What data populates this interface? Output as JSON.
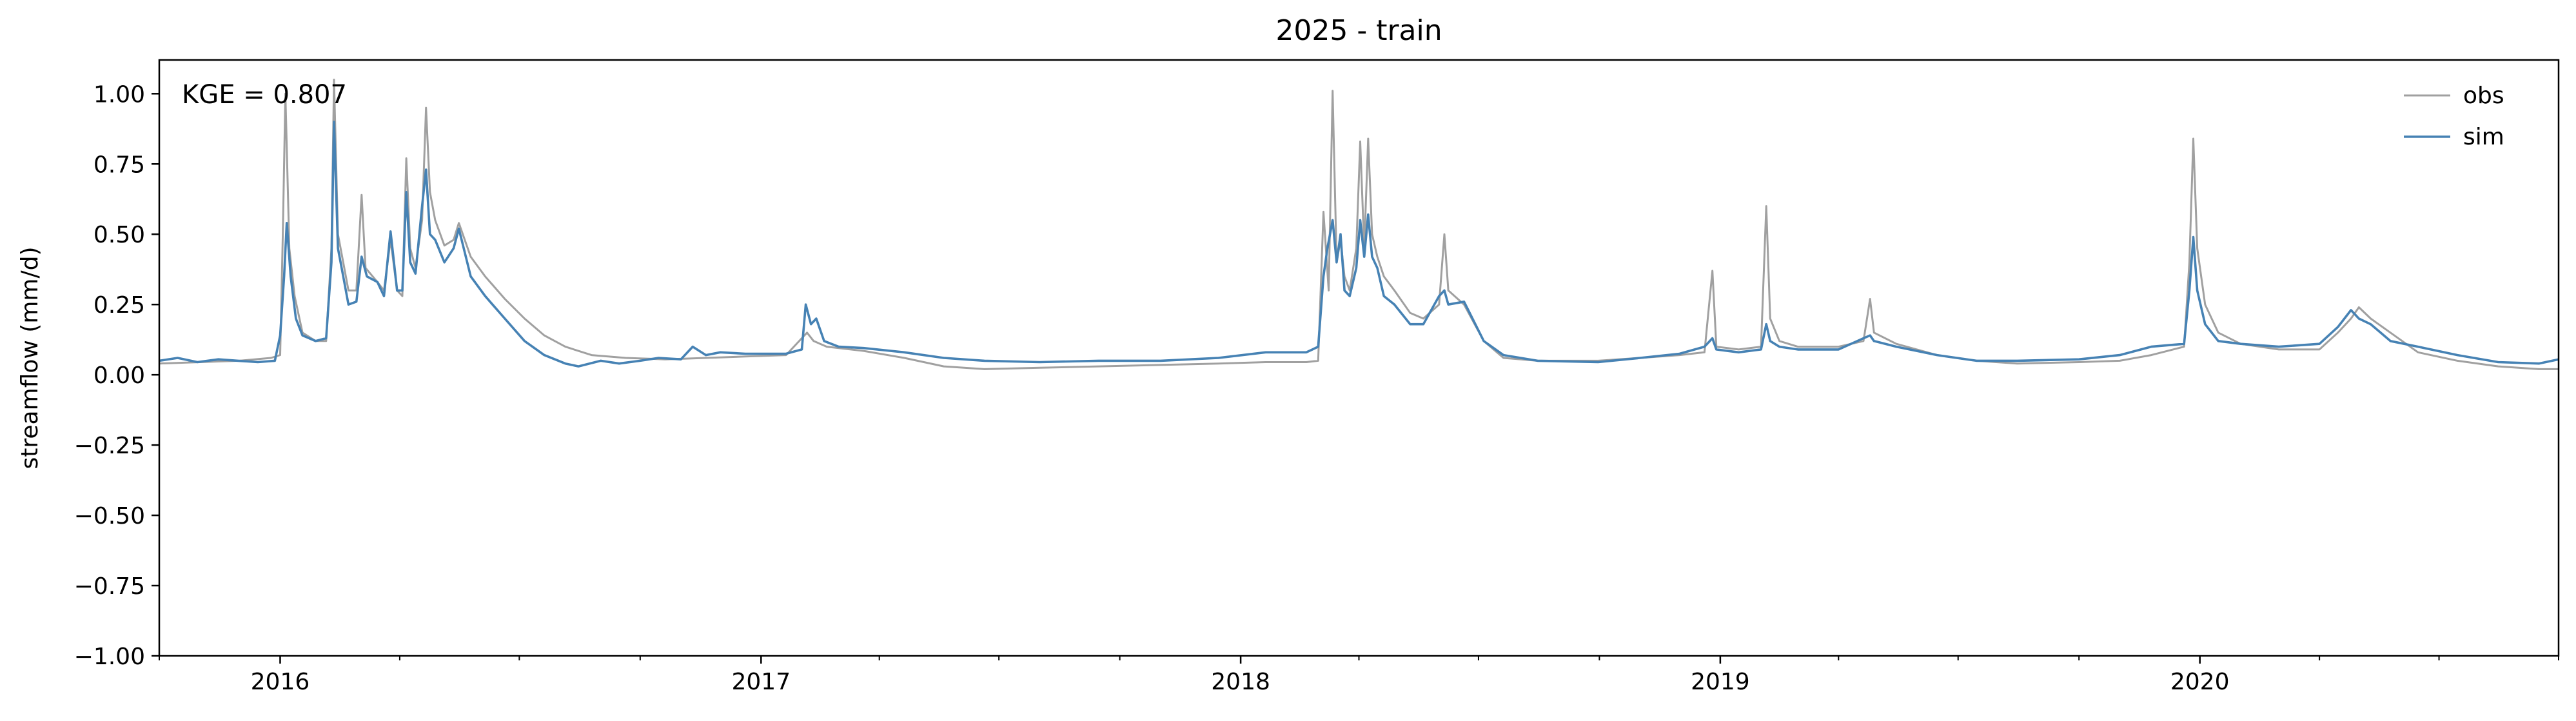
{
  "chart_data": {
    "type": "line",
    "title": "2025 - train",
    "xlabel": "",
    "ylabel": "streamflow (mm/d)",
    "ylim": [
      -1.0,
      1.12
    ],
    "xlim": [
      "2015-10-01",
      "2020-09-30"
    ],
    "grid": false,
    "legend_position": "top-right",
    "annotation": "KGE = 0.807",
    "yticks": [
      -1.0,
      -0.75,
      -0.5,
      -0.25,
      0.0,
      0.25,
      0.5,
      0.75,
      1.0
    ],
    "ytick_labels": [
      "−1.00",
      "−0.75",
      "−0.50",
      "−0.25",
      "0.00",
      "0.25",
      "0.50",
      "0.75",
      "1.00"
    ],
    "xticks": [
      "2016-01-01",
      "2017-01-01",
      "2018-01-01",
      "2019-01-01",
      "2020-01-01"
    ],
    "xtick_labels": [
      "2016",
      "2017",
      "2018",
      "2019",
      "2020"
    ],
    "minor_xticks": [
      "2015-10-01",
      "2016-04-01",
      "2016-07-01",
      "2016-10-01",
      "2017-04-01",
      "2017-07-01",
      "2017-10-01",
      "2018-04-01",
      "2018-07-01",
      "2018-10-01",
      "2019-04-01",
      "2019-07-01",
      "2019-10-01",
      "2020-04-01",
      "2020-07-01",
      "2020-10-01"
    ],
    "series": [
      {
        "name": "obs",
        "color": "#a0a0a0",
        "points": [
          [
            "2015-10-01",
            0.04
          ],
          [
            "2015-11-01",
            0.045
          ],
          [
            "2015-12-01",
            0.05
          ],
          [
            "2015-12-25",
            0.06
          ],
          [
            "2016-01-01",
            0.07
          ],
          [
            "2016-01-03",
            0.5
          ],
          [
            "2016-01-05",
            1.0
          ],
          [
            "2016-01-08",
            0.45
          ],
          [
            "2016-01-12",
            0.28
          ],
          [
            "2016-01-18",
            0.15
          ],
          [
            "2016-01-28",
            0.12
          ],
          [
            "2016-02-05",
            0.12
          ],
          [
            "2016-02-09",
            0.45
          ],
          [
            "2016-02-11",
            1.05
          ],
          [
            "2016-02-14",
            0.5
          ],
          [
            "2016-02-18",
            0.4
          ],
          [
            "2016-02-22",
            0.3
          ],
          [
            "2016-02-28",
            0.3
          ],
          [
            "2016-03-03",
            0.64
          ],
          [
            "2016-03-06",
            0.38
          ],
          [
            "2016-03-15",
            0.33
          ],
          [
            "2016-03-20",
            0.3
          ],
          [
            "2016-03-25",
            0.48
          ],
          [
            "2016-03-30",
            0.3
          ],
          [
            "2016-04-03",
            0.28
          ],
          [
            "2016-04-06",
            0.77
          ],
          [
            "2016-04-09",
            0.45
          ],
          [
            "2016-04-13",
            0.38
          ],
          [
            "2016-04-18",
            0.55
          ],
          [
            "2016-04-21",
            0.95
          ],
          [
            "2016-04-24",
            0.65
          ],
          [
            "2016-04-28",
            0.55
          ],
          [
            "2016-05-05",
            0.46
          ],
          [
            "2016-05-12",
            0.48
          ],
          [
            "2016-05-16",
            0.54
          ],
          [
            "2016-05-25",
            0.42
          ],
          [
            "2016-06-05",
            0.35
          ],
          [
            "2016-06-20",
            0.27
          ],
          [
            "2016-07-05",
            0.2
          ],
          [
            "2016-07-20",
            0.14
          ],
          [
            "2016-08-05",
            0.1
          ],
          [
            "2016-08-25",
            0.07
          ],
          [
            "2016-09-20",
            0.06
          ],
          [
            "2016-10-20",
            0.055
          ],
          [
            "2016-11-20",
            0.06
          ],
          [
            "2016-12-20",
            0.065
          ],
          [
            "2017-01-20",
            0.07
          ],
          [
            "2017-02-05",
            0.15
          ],
          [
            "2017-02-10",
            0.12
          ],
          [
            "2017-02-20",
            0.1
          ],
          [
            "2017-03-20",
            0.085
          ],
          [
            "2017-04-20",
            0.06
          ],
          [
            "2017-05-20",
            0.03
          ],
          [
            "2017-06-20",
            0.02
          ],
          [
            "2017-08-01",
            0.025
          ],
          [
            "2017-09-15",
            0.03
          ],
          [
            "2017-11-01",
            0.035
          ],
          [
            "2017-12-15",
            0.04
          ],
          [
            "2018-01-20",
            0.045
          ],
          [
            "2018-02-20",
            0.045
          ],
          [
            "2018-03-01",
            0.05
          ],
          [
            "2018-03-05",
            0.58
          ],
          [
            "2018-03-09",
            0.3
          ],
          [
            "2018-03-12",
            1.01
          ],
          [
            "2018-03-15",
            0.4
          ],
          [
            "2018-03-18",
            0.48
          ],
          [
            "2018-03-21",
            0.35
          ],
          [
            "2018-03-25",
            0.3
          ],
          [
            "2018-03-30",
            0.45
          ],
          [
            "2018-04-02",
            0.83
          ],
          [
            "2018-04-05",
            0.45
          ],
          [
            "2018-04-08",
            0.84
          ],
          [
            "2018-04-11",
            0.5
          ],
          [
            "2018-04-15",
            0.42
          ],
          [
            "2018-04-20",
            0.35
          ],
          [
            "2018-04-28",
            0.3
          ],
          [
            "2018-05-10",
            0.22
          ],
          [
            "2018-05-20",
            0.2
          ],
          [
            "2018-06-01",
            0.25
          ],
          [
            "2018-06-05",
            0.5
          ],
          [
            "2018-06-08",
            0.3
          ],
          [
            "2018-06-20",
            0.25
          ],
          [
            "2018-07-05",
            0.12
          ],
          [
            "2018-07-20",
            0.06
          ],
          [
            "2018-08-15",
            0.05
          ],
          [
            "2018-09-30",
            0.05
          ],
          [
            "2018-11-01",
            0.06
          ],
          [
            "2018-12-01",
            0.07
          ],
          [
            "2018-12-20",
            0.08
          ],
          [
            "2018-12-26",
            0.37
          ],
          [
            "2018-12-29",
            0.1
          ],
          [
            "2019-01-15",
            0.09
          ],
          [
            "2019-02-01",
            0.1
          ],
          [
            "2019-02-05",
            0.6
          ],
          [
            "2019-02-08",
            0.2
          ],
          [
            "2019-02-15",
            0.12
          ],
          [
            "2019-03-01",
            0.1
          ],
          [
            "2019-04-01",
            0.1
          ],
          [
            "2019-04-20",
            0.12
          ],
          [
            "2019-04-25",
            0.27
          ],
          [
            "2019-04-28",
            0.15
          ],
          [
            "2019-05-15",
            0.11
          ],
          [
            "2019-06-15",
            0.07
          ],
          [
            "2019-07-15",
            0.05
          ],
          [
            "2019-08-15",
            0.04
          ],
          [
            "2019-10-01",
            0.045
          ],
          [
            "2019-11-01",
            0.05
          ],
          [
            "2019-11-25",
            0.07
          ],
          [
            "2019-12-20",
            0.1
          ],
          [
            "2019-12-24",
            0.4
          ],
          [
            "2019-12-27",
            0.84
          ],
          [
            "2019-12-30",
            0.45
          ],
          [
            "2020-01-05",
            0.25
          ],
          [
            "2020-01-15",
            0.15
          ],
          [
            "2020-02-01",
            0.11
          ],
          [
            "2020-03-01",
            0.09
          ],
          [
            "2020-04-01",
            0.09
          ],
          [
            "2020-04-15",
            0.15
          ],
          [
            "2020-04-25",
            0.2
          ],
          [
            "2020-05-01",
            0.24
          ],
          [
            "2020-05-10",
            0.2
          ],
          [
            "2020-05-25",
            0.15
          ],
          [
            "2020-06-15",
            0.08
          ],
          [
            "2020-07-15",
            0.05
          ],
          [
            "2020-08-15",
            0.03
          ],
          [
            "2020-09-15",
            0.02
          ],
          [
            "2020-09-30",
            0.02
          ]
        ]
      },
      {
        "name": "sim",
        "color": "#4682b4",
        "points": [
          [
            "2015-10-01",
            0.05
          ],
          [
            "2015-10-15",
            0.06
          ],
          [
            "2015-10-30",
            0.045
          ],
          [
            "2015-11-15",
            0.055
          ],
          [
            "2015-11-30",
            0.05
          ],
          [
            "2015-12-15",
            0.045
          ],
          [
            "2015-12-28",
            0.05
          ],
          [
            "2016-01-01",
            0.14
          ],
          [
            "2016-01-04",
            0.35
          ],
          [
            "2016-01-06",
            0.54
          ],
          [
            "2016-01-09",
            0.35
          ],
          [
            "2016-01-13",
            0.2
          ],
          [
            "2016-01-18",
            0.14
          ],
          [
            "2016-01-28",
            0.12
          ],
          [
            "2016-02-05",
            0.13
          ],
          [
            "2016-02-09",
            0.4
          ],
          [
            "2016-02-11",
            0.9
          ],
          [
            "2016-02-14",
            0.45
          ],
          [
            "2016-02-18",
            0.35
          ],
          [
            "2016-02-22",
            0.25
          ],
          [
            "2016-02-28",
            0.26
          ],
          [
            "2016-03-03",
            0.42
          ],
          [
            "2016-03-07",
            0.35
          ],
          [
            "2016-03-15",
            0.33
          ],
          [
            "2016-03-20",
            0.28
          ],
          [
            "2016-03-25",
            0.51
          ],
          [
            "2016-03-30",
            0.3
          ],
          [
            "2016-04-03",
            0.3
          ],
          [
            "2016-04-06",
            0.65
          ],
          [
            "2016-04-09",
            0.4
          ],
          [
            "2016-04-13",
            0.36
          ],
          [
            "2016-04-18",
            0.6
          ],
          [
            "2016-04-21",
            0.73
          ],
          [
            "2016-04-24",
            0.5
          ],
          [
            "2016-04-28",
            0.48
          ],
          [
            "2016-05-05",
            0.4
          ],
          [
            "2016-05-12",
            0.45
          ],
          [
            "2016-05-16",
            0.52
          ],
          [
            "2016-05-25",
            0.35
          ],
          [
            "2016-06-05",
            0.28
          ],
          [
            "2016-06-20",
            0.2
          ],
          [
            "2016-07-05",
            0.12
          ],
          [
            "2016-07-20",
            0.07
          ],
          [
            "2016-08-05",
            0.04
          ],
          [
            "2016-08-15",
            0.03
          ],
          [
            "2016-09-01",
            0.05
          ],
          [
            "2016-09-15",
            0.04
          ],
          [
            "2016-10-01",
            0.05
          ],
          [
            "2016-10-15",
            0.06
          ],
          [
            "2016-11-01",
            0.055
          ],
          [
            "2016-11-10",
            0.1
          ],
          [
            "2016-11-20",
            0.07
          ],
          [
            "2016-12-01",
            0.08
          ],
          [
            "2016-12-20",
            0.075
          ],
          [
            "2017-01-20",
            0.075
          ],
          [
            "2017-02-01",
            0.09
          ],
          [
            "2017-02-04",
            0.25
          ],
          [
            "2017-02-08",
            0.18
          ],
          [
            "2017-02-12",
            0.2
          ],
          [
            "2017-02-18",
            0.12
          ],
          [
            "2017-03-01",
            0.1
          ],
          [
            "2017-03-20",
            0.095
          ],
          [
            "2017-04-20",
            0.08
          ],
          [
            "2017-05-20",
            0.06
          ],
          [
            "2017-06-20",
            0.05
          ],
          [
            "2017-08-01",
            0.045
          ],
          [
            "2017-09-15",
            0.05
          ],
          [
            "2017-11-01",
            0.05
          ],
          [
            "2017-12-15",
            0.06
          ],
          [
            "2018-01-20",
            0.08
          ],
          [
            "2018-02-20",
            0.08
          ],
          [
            "2018-03-01",
            0.1
          ],
          [
            "2018-03-05",
            0.35
          ],
          [
            "2018-03-08",
            0.45
          ],
          [
            "2018-03-12",
            0.55
          ],
          [
            "2018-03-15",
            0.4
          ],
          [
            "2018-03-18",
            0.5
          ],
          [
            "2018-03-21",
            0.3
          ],
          [
            "2018-03-25",
            0.28
          ],
          [
            "2018-03-30",
            0.38
          ],
          [
            "2018-04-02",
            0.55
          ],
          [
            "2018-04-05",
            0.42
          ],
          [
            "2018-04-08",
            0.57
          ],
          [
            "2018-04-11",
            0.42
          ],
          [
            "2018-04-15",
            0.38
          ],
          [
            "2018-04-20",
            0.28
          ],
          [
            "2018-04-28",
            0.25
          ],
          [
            "2018-05-10",
            0.18
          ],
          [
            "2018-05-20",
            0.18
          ],
          [
            "2018-06-01",
            0.28
          ],
          [
            "2018-06-05",
            0.3
          ],
          [
            "2018-06-08",
            0.25
          ],
          [
            "2018-06-20",
            0.26
          ],
          [
            "2018-07-05",
            0.12
          ],
          [
            "2018-07-20",
            0.07
          ],
          [
            "2018-08-15",
            0.05
          ],
          [
            "2018-09-30",
            0.045
          ],
          [
            "2018-11-01",
            0.06
          ],
          [
            "2018-12-01",
            0.075
          ],
          [
            "2018-12-20",
            0.1
          ],
          [
            "2018-12-26",
            0.13
          ],
          [
            "2018-12-29",
            0.09
          ],
          [
            "2019-01-15",
            0.08
          ],
          [
            "2019-02-01",
            0.09
          ],
          [
            "2019-02-05",
            0.18
          ],
          [
            "2019-02-08",
            0.12
          ],
          [
            "2019-02-15",
            0.1
          ],
          [
            "2019-03-01",
            0.09
          ],
          [
            "2019-04-01",
            0.09
          ],
          [
            "2019-04-20",
            0.13
          ],
          [
            "2019-04-25",
            0.14
          ],
          [
            "2019-04-28",
            0.12
          ],
          [
            "2019-05-15",
            0.1
          ],
          [
            "2019-06-15",
            0.07
          ],
          [
            "2019-07-15",
            0.05
          ],
          [
            "2019-08-15",
            0.05
          ],
          [
            "2019-10-01",
            0.055
          ],
          [
            "2019-11-01",
            0.07
          ],
          [
            "2019-11-25",
            0.1
          ],
          [
            "2019-12-20",
            0.11
          ],
          [
            "2019-12-24",
            0.3
          ],
          [
            "2019-12-27",
            0.49
          ],
          [
            "2019-12-30",
            0.3
          ],
          [
            "2020-01-05",
            0.18
          ],
          [
            "2020-01-15",
            0.12
          ],
          [
            "2020-02-01",
            0.11
          ],
          [
            "2020-03-01",
            0.1
          ],
          [
            "2020-04-01",
            0.11
          ],
          [
            "2020-04-15",
            0.17
          ],
          [
            "2020-04-25",
            0.23
          ],
          [
            "2020-05-01",
            0.2
          ],
          [
            "2020-05-10",
            0.18
          ],
          [
            "2020-05-25",
            0.12
          ],
          [
            "2020-06-15",
            0.1
          ],
          [
            "2020-07-15",
            0.07
          ],
          [
            "2020-08-15",
            0.045
          ],
          [
            "2020-09-15",
            0.04
          ],
          [
            "2020-09-30",
            0.055
          ]
        ]
      }
    ]
  }
}
